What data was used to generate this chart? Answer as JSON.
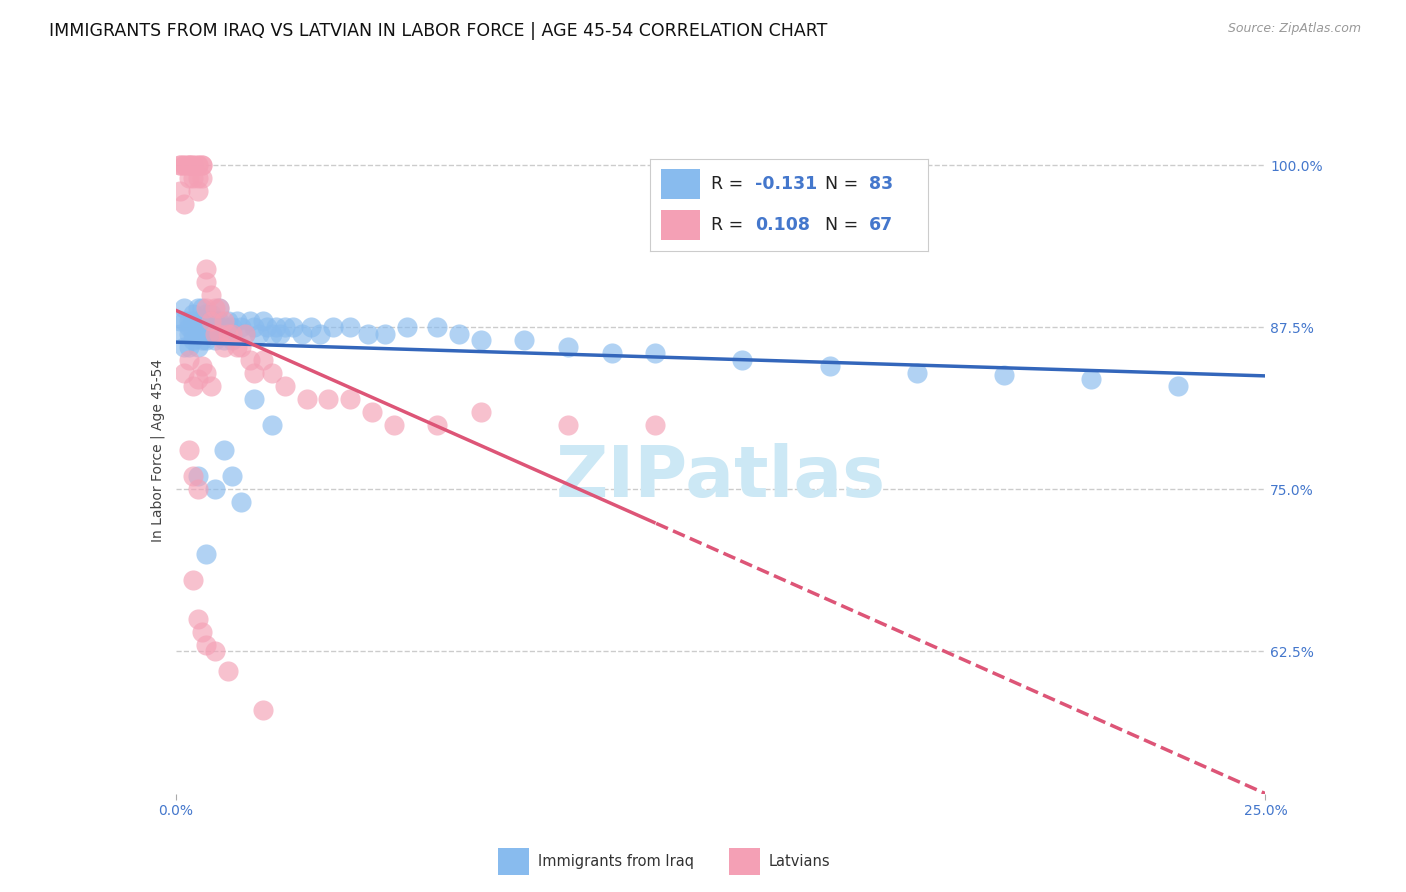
{
  "title": "IMMIGRANTS FROM IRAQ VS LATVIAN IN LABOR FORCE | AGE 45-54 CORRELATION CHART",
  "source": "Source: ZipAtlas.com",
  "ylabel": "In Labor Force | Age 45-54",
  "yticks": [
    0.625,
    0.75,
    0.875,
    1.0
  ],
  "ytick_labels": [
    "62.5%",
    "75.0%",
    "87.5%",
    "100.0%"
  ],
  "xtick_left": "0.0%",
  "xtick_right": "25.0%",
  "xmin": 0.0,
  "xmax": 0.25,
  "ymin": 0.515,
  "ymax": 1.045,
  "iraq_color": "#88bbee",
  "latvian_color": "#f4a0b5",
  "iraq_line_color": "#3366bb",
  "latvian_line_color": "#dd5577",
  "watermark": "ZIPatlas",
  "watermark_color": "#cce8f5",
  "background_color": "#ffffff",
  "grid_color": "#cccccc",
  "title_fontsize": 12.5,
  "axis_label_fontsize": 10,
  "source_fontsize": 9,
  "tick_color": "#4477cc",
  "label_color": "#444444",
  "iraq_x": [
    0.001,
    0.001,
    0.002,
    0.002,
    0.002,
    0.003,
    0.003,
    0.003,
    0.003,
    0.004,
    0.004,
    0.004,
    0.004,
    0.005,
    0.005,
    0.005,
    0.005,
    0.005,
    0.006,
    0.006,
    0.006,
    0.006,
    0.007,
    0.007,
    0.007,
    0.007,
    0.008,
    0.008,
    0.008,
    0.009,
    0.009,
    0.009,
    0.01,
    0.01,
    0.01,
    0.011,
    0.011,
    0.012,
    0.012,
    0.013,
    0.013,
    0.014,
    0.015,
    0.016,
    0.017,
    0.018,
    0.019,
    0.02,
    0.021,
    0.022,
    0.023,
    0.024,
    0.025,
    0.027,
    0.029,
    0.031,
    0.033,
    0.036,
    0.04,
    0.044,
    0.048,
    0.053,
    0.06,
    0.065,
    0.07,
    0.08,
    0.09,
    0.1,
    0.11,
    0.13,
    0.15,
    0.17,
    0.19,
    0.21,
    0.23,
    0.005,
    0.007,
    0.009,
    0.011,
    0.013,
    0.015,
    0.018,
    0.022
  ],
  "iraq_y": [
    0.87,
    0.88,
    0.86,
    0.88,
    0.89,
    0.87,
    0.88,
    0.86,
    0.875,
    0.87,
    0.885,
    0.865,
    0.88,
    0.87,
    0.86,
    0.88,
    0.89,
    0.875,
    0.865,
    0.88,
    0.89,
    0.875,
    0.87,
    0.885,
    0.865,
    0.88,
    0.87,
    0.885,
    0.875,
    0.87,
    0.88,
    0.865,
    0.88,
    0.87,
    0.89,
    0.875,
    0.865,
    0.88,
    0.87,
    0.875,
    0.865,
    0.88,
    0.875,
    0.87,
    0.88,
    0.875,
    0.87,
    0.88,
    0.875,
    0.87,
    0.875,
    0.87,
    0.875,
    0.875,
    0.87,
    0.875,
    0.87,
    0.875,
    0.875,
    0.87,
    0.87,
    0.875,
    0.875,
    0.87,
    0.865,
    0.865,
    0.86,
    0.855,
    0.855,
    0.85,
    0.845,
    0.84,
    0.838,
    0.835,
    0.83,
    0.76,
    0.7,
    0.75,
    0.78,
    0.76,
    0.74,
    0.82,
    0.8
  ],
  "latvian_x": [
    0.001,
    0.001,
    0.001,
    0.002,
    0.002,
    0.002,
    0.003,
    0.003,
    0.003,
    0.003,
    0.004,
    0.004,
    0.004,
    0.005,
    0.005,
    0.005,
    0.005,
    0.006,
    0.006,
    0.006,
    0.007,
    0.007,
    0.007,
    0.008,
    0.008,
    0.009,
    0.009,
    0.01,
    0.01,
    0.011,
    0.011,
    0.012,
    0.013,
    0.014,
    0.015,
    0.016,
    0.017,
    0.018,
    0.02,
    0.022,
    0.025,
    0.03,
    0.035,
    0.04,
    0.045,
    0.05,
    0.06,
    0.07,
    0.09,
    0.11,
    0.002,
    0.003,
    0.004,
    0.005,
    0.006,
    0.007,
    0.008,
    0.003,
    0.004,
    0.005,
    0.004,
    0.005,
    0.006,
    0.007,
    0.009,
    0.012,
    0.02
  ],
  "latvian_y": [
    1.0,
    1.0,
    0.98,
    1.0,
    1.0,
    0.97,
    1.0,
    1.0,
    0.99,
    1.0,
    1.0,
    0.99,
    1.0,
    1.0,
    0.99,
    1.0,
    0.98,
    1.0,
    0.99,
    1.0,
    0.92,
    0.91,
    0.89,
    0.9,
    0.88,
    0.89,
    0.87,
    0.89,
    0.87,
    0.88,
    0.86,
    0.87,
    0.87,
    0.86,
    0.86,
    0.87,
    0.85,
    0.84,
    0.85,
    0.84,
    0.83,
    0.82,
    0.82,
    0.82,
    0.81,
    0.8,
    0.8,
    0.81,
    0.8,
    0.8,
    0.84,
    0.85,
    0.83,
    0.835,
    0.845,
    0.84,
    0.83,
    0.78,
    0.76,
    0.75,
    0.68,
    0.65,
    0.64,
    0.63,
    0.625,
    0.61,
    0.58
  ]
}
